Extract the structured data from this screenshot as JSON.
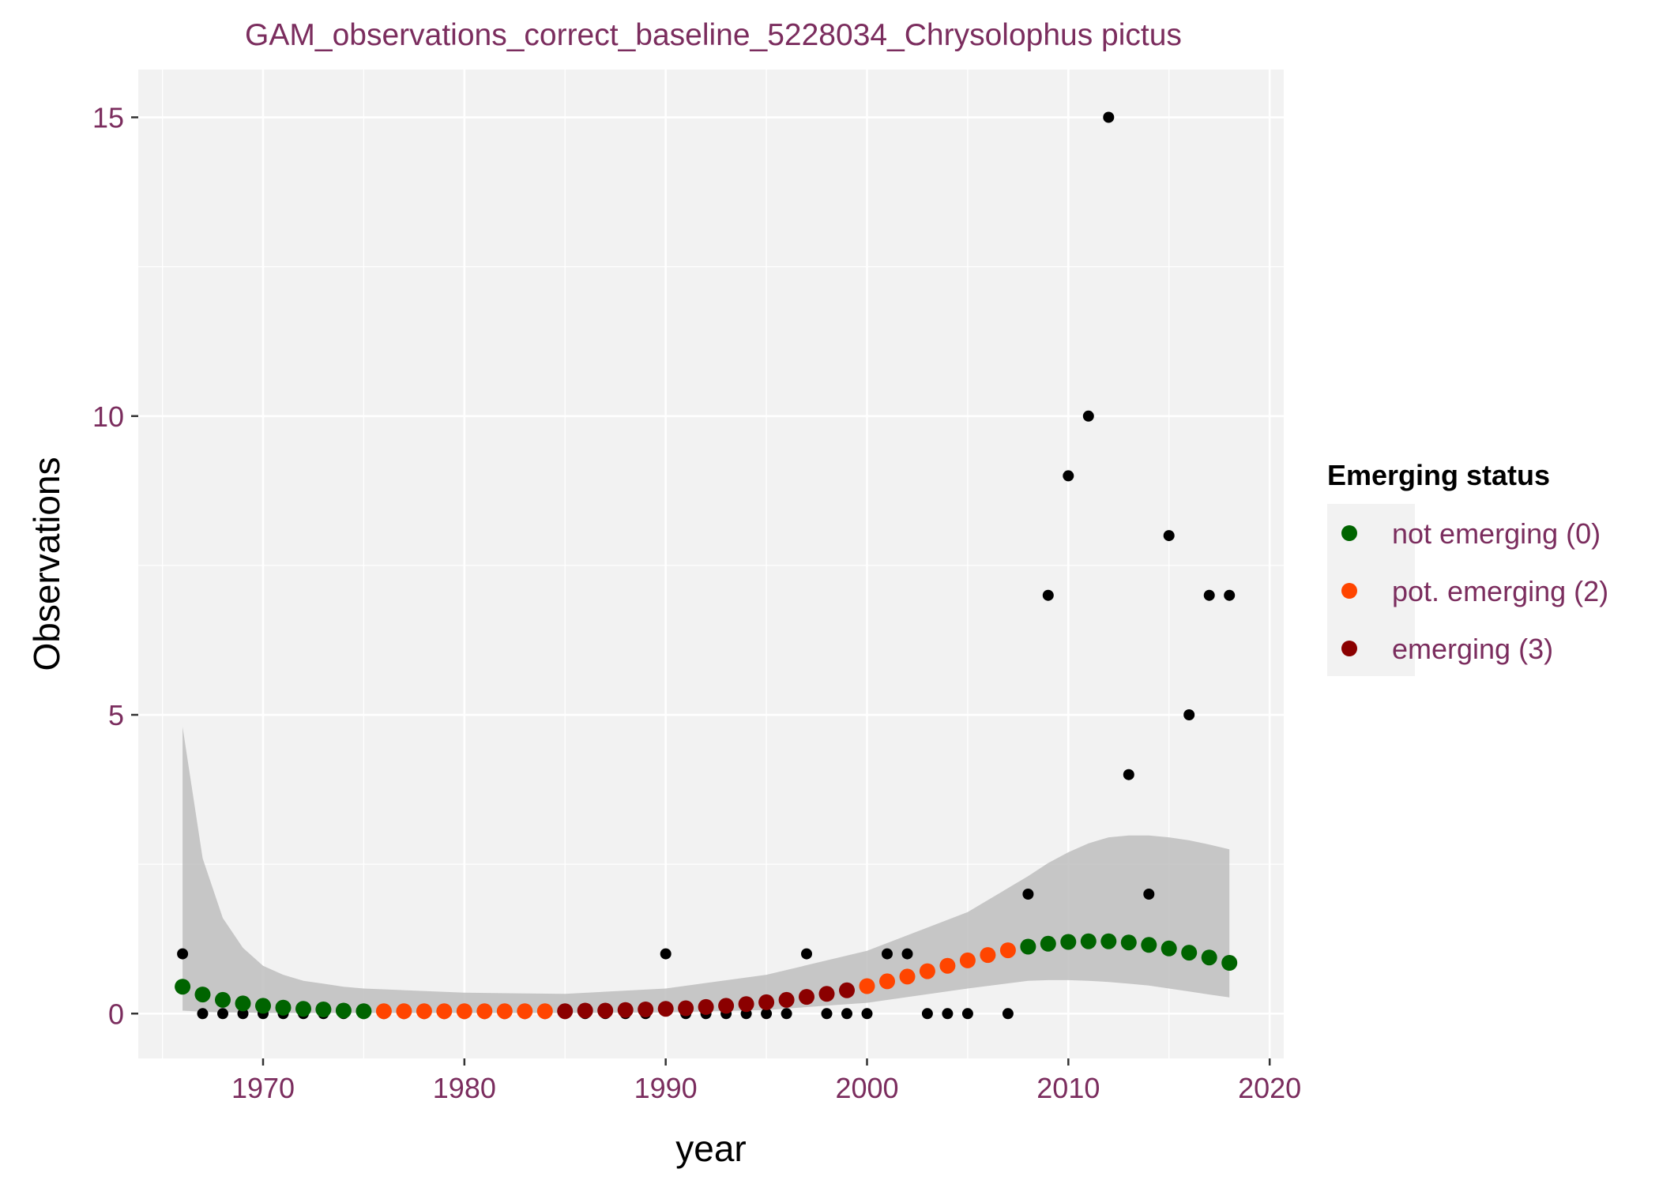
{
  "chart_data": {
    "type": "scatter",
    "title": "GAM_observations_correct_baseline_5228034_Chrysolophus pictus",
    "xlabel": "year",
    "ylabel": "Observations",
    "xlim": [
      1963.8,
      2020.7
    ],
    "ylim": [
      -0.75,
      15.8
    ],
    "x_ticks": [
      1970,
      1980,
      1990,
      2000,
      2010,
      2020
    ],
    "y_ticks": [
      0,
      5,
      10,
      15
    ],
    "x_tick_labels": [
      "1970",
      "1980",
      "1990",
      "2000",
      "2010",
      "2020"
    ],
    "y_tick_labels": [
      "0",
      "5",
      "10",
      "15"
    ],
    "grid": true,
    "legend": {
      "title": "Emerging status",
      "position": "right",
      "entries": [
        {
          "label": "not emerging (0)",
          "color": "#006400"
        },
        {
          "label": "pot. emerging (2)",
          "color": "#ff4500"
        },
        {
          "label": "emerging (3)",
          "color": "#8b0000"
        }
      ]
    },
    "colors": {
      "panel_background": "#f2f2f2",
      "grid": "#ffffff",
      "ribbon": "#bebebe",
      "observed": "#000000",
      "not_emerging": "#006400",
      "pot_emerging": "#ff4500",
      "emerging": "#8b0000"
    },
    "observed": {
      "x": [
        1966,
        1967,
        1968,
        1969,
        1970,
        1971,
        1972,
        1973,
        1974,
        1975,
        1976,
        1977,
        1978,
        1979,
        1980,
        1981,
        1982,
        1983,
        1984,
        1985,
        1986,
        1987,
        1988,
        1989,
        1990,
        1991,
        1992,
        1993,
        1994,
        1995,
        1996,
        1997,
        1998,
        1999,
        2000,
        2001,
        2002,
        2003,
        2004,
        2005,
        2006,
        2007,
        2008,
        2009,
        2010,
        2011,
        2012,
        2013,
        2014,
        2015,
        2016,
        2017,
        2018
      ],
      "y": [
        1,
        0,
        0,
        0,
        0,
        0,
        0,
        0,
        0,
        0,
        0,
        0,
        0,
        0,
        0,
        0,
        0,
        0,
        0,
        0,
        0,
        0,
        0,
        0,
        1,
        0,
        0,
        0,
        0,
        0,
        0,
        1,
        0,
        0,
        0,
        1,
        1,
        0,
        0,
        0,
        1,
        0,
        2,
        7,
        9,
        10,
        15,
        4,
        2,
        8,
        5,
        7,
        7
      ]
    },
    "fitted": {
      "x": [
        1966,
        1967,
        1968,
        1969,
        1970,
        1971,
        1972,
        1973,
        1974,
        1975,
        1976,
        1977,
        1978,
        1979,
        1980,
        1981,
        1982,
        1983,
        1984,
        1985,
        1986,
        1987,
        1988,
        1989,
        1990,
        1991,
        1992,
        1993,
        1994,
        1995,
        1996,
        1997,
        1998,
        1999,
        2000,
        2001,
        2002,
        2003,
        2004,
        2005,
        2006,
        2007,
        2008,
        2009,
        2010,
        2011,
        2012,
        2013,
        2014,
        2015,
        2016,
        2017,
        2018
      ],
      "y": [
        0.45,
        0.32,
        0.23,
        0.17,
        0.13,
        0.1,
        0.08,
        0.07,
        0.05,
        0.04,
        0.04,
        0.04,
        0.04,
        0.04,
        0.04,
        0.04,
        0.04,
        0.04,
        0.04,
        0.04,
        0.05,
        0.05,
        0.06,
        0.07,
        0.08,
        0.09,
        0.11,
        0.13,
        0.16,
        0.19,
        0.23,
        0.28,
        0.33,
        0.39,
        0.46,
        0.54,
        0.62,
        0.71,
        0.8,
        0.89,
        0.98,
        1.06,
        1.12,
        1.17,
        1.2,
        1.21,
        1.21,
        1.19,
        1.15,
        1.09,
        1.02,
        0.94,
        0.85
      ],
      "status": [
        0,
        0,
        0,
        0,
        0,
        0,
        0,
        0,
        0,
        0,
        2,
        2,
        2,
        2,
        2,
        2,
        2,
        2,
        2,
        3,
        3,
        3,
        3,
        3,
        3,
        3,
        3,
        3,
        3,
        3,
        3,
        3,
        3,
        3,
        2,
        2,
        2,
        2,
        2,
        2,
        2,
        2,
        0,
        0,
        0,
        0,
        0,
        0,
        0,
        0,
        0,
        0,
        0
      ]
    },
    "ribbon": {
      "x": [
        1966,
        1967,
        1968,
        1969,
        1970,
        1971,
        1972,
        1973,
        1974,
        1975,
        1980,
        1985,
        1990,
        1995,
        2000,
        2005,
        2008,
        2009,
        2010,
        2011,
        2012,
        2013,
        2014,
        2015,
        2016,
        2017,
        2018
      ],
      "upper": [
        4.8,
        2.6,
        1.6,
        1.1,
        0.8,
        0.65,
        0.55,
        0.5,
        0.45,
        0.42,
        0.35,
        0.33,
        0.42,
        0.65,
        1.05,
        1.7,
        2.3,
        2.52,
        2.7,
        2.85,
        2.95,
        2.98,
        2.98,
        2.95,
        2.9,
        2.83,
        2.75
      ],
      "lower": [
        0.05,
        0.03,
        0.02,
        0.02,
        0.01,
        0.01,
        0.01,
        0.01,
        0.01,
        0.01,
        0.01,
        0.01,
        0.02,
        0.06,
        0.18,
        0.42,
        0.55,
        0.56,
        0.56,
        0.55,
        0.53,
        0.5,
        0.47,
        0.42,
        0.37,
        0.32,
        0.27
      ]
    }
  }
}
